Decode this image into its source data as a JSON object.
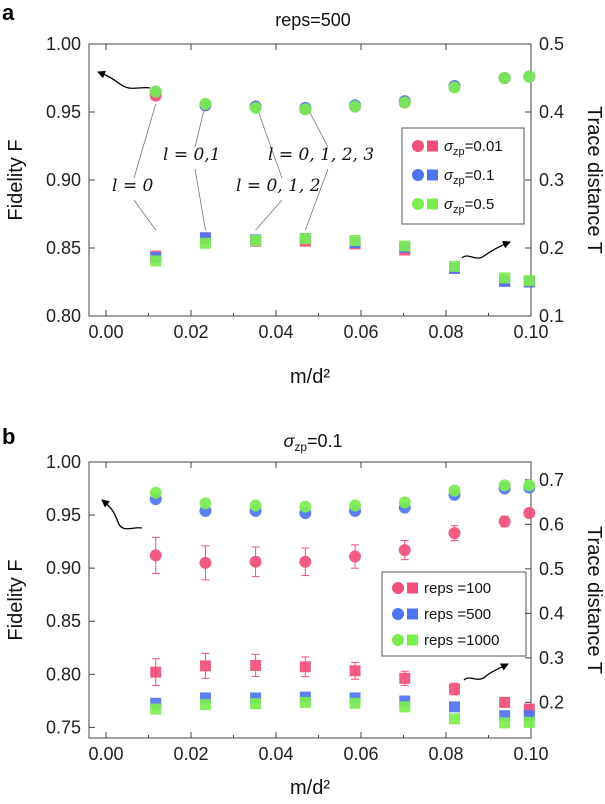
{
  "chart_data": [
    {
      "panel": "a",
      "type": "scatter",
      "title": "reps=500",
      "xlabel": "m/d²",
      "ylabel_left": "Fidelity F",
      "ylabel_right": "Trace distance T",
      "xlim": [
        -0.004,
        0.1
      ],
      "ylim_left": [
        0.8,
        1.0
      ],
      "ylim_right": [
        0.1,
        0.5
      ],
      "x_ticks": [
        "0.00",
        "0.02",
        "0.04",
        "0.06",
        "0.08",
        "0.10"
      ],
      "y_ticks_left": [
        "0.80",
        "0.85",
        "0.90",
        "0.95",
        "1.00"
      ],
      "y_ticks_right": [
        "0.1",
        "0.2",
        "0.3",
        "0.4",
        "0.5"
      ],
      "x": [
        0.0117,
        0.0234,
        0.0352,
        0.0469,
        0.0586,
        0.0703,
        0.082,
        0.0938,
        0.0996
      ],
      "legend": {
        "position": "right",
        "entries": [
          {
            "prefix": "σ",
            "sub": "zp",
            "suffix": "=0.01",
            "color": "#f0507a"
          },
          {
            "prefix": "σ",
            "sub": "zp",
            "suffix": "=0.1",
            "color": "#4f74f2"
          },
          {
            "prefix": "σ",
            "sub": "zp",
            "suffix": "=0.5",
            "color": "#7ced4f"
          }
        ]
      },
      "series": [
        {
          "name": "σzp=0.01 fidelity",
          "axis": "left",
          "marker": "circle",
          "color": "#f0507a",
          "values": [
            0.962,
            0.955,
            0.954,
            0.952,
            0.954,
            0.957,
            0.969,
            0.975,
            0.976
          ]
        },
        {
          "name": "σzp=0.1 fidelity",
          "axis": "left",
          "marker": "circle",
          "color": "#4f74f2",
          "values": [
            0.965,
            0.955,
            0.954,
            0.953,
            0.955,
            0.958,
            0.969,
            0.975,
            0.976
          ]
        },
        {
          "name": "σzp=0.5 fidelity",
          "axis": "left",
          "marker": "circle",
          "color": "#7ced4f",
          "values": [
            0.965,
            0.956,
            0.953,
            0.952,
            0.954,
            0.957,
            0.968,
            0.975,
            0.976
          ]
        },
        {
          "name": "σzp=0.01 trace distance",
          "axis": "right",
          "marker": "square",
          "color": "#f0507a",
          "values": [
            0.188,
            0.215,
            0.21,
            0.21,
            0.206,
            0.197,
            0.17,
            0.152,
            0.15
          ]
        },
        {
          "name": "σzp=0.1 trace distance",
          "axis": "right",
          "marker": "square",
          "color": "#4f74f2",
          "values": [
            0.186,
            0.215,
            0.212,
            0.214,
            0.208,
            0.201,
            0.17,
            0.151,
            0.15
          ]
        },
        {
          "name": "σzp=0.5 trace distance",
          "axis": "right",
          "marker": "square",
          "color": "#7ced4f",
          "values": [
            0.181,
            0.207,
            0.211,
            0.214,
            0.211,
            0.203,
            0.173,
            0.156,
            0.152
          ]
        }
      ],
      "annotations": [
        {
          "text": "l = 0",
          "x_data": 0.0117
        },
        {
          "text": "l = 0,1",
          "x_data": 0.0234
        },
        {
          "text": "l = 0, 1, 2",
          "x_data": 0.0352
        },
        {
          "text": "l = 0, 1, 2, 3",
          "x_data": 0.0469
        }
      ]
    },
    {
      "panel": "b",
      "type": "scatter",
      "title_prefix": "σ",
      "title_sub": "zp",
      "title_suffix": "=0.1",
      "xlabel": "m/d²",
      "ylabel_left": "Fidelity F",
      "ylabel_right": "Trace distance T",
      "xlim": [
        -0.004,
        0.1
      ],
      "ylim_left": [
        0.74,
        1.0
      ],
      "ylim_right": [
        0.12,
        0.74
      ],
      "x_ticks": [
        "0.00",
        "0.02",
        "0.04",
        "0.06",
        "0.08",
        "0.10"
      ],
      "y_ticks_left": [
        "0.75",
        "0.80",
        "0.85",
        "0.90",
        "0.95",
        "1.00"
      ],
      "y_ticks_right": [
        "0.2",
        "0.3",
        "0.4",
        "0.5",
        "0.6",
        "0.7"
      ],
      "x": [
        0.0117,
        0.0234,
        0.0352,
        0.0469,
        0.0586,
        0.0703,
        0.082,
        0.0938,
        0.0996
      ],
      "legend": {
        "position": "right",
        "entries": [
          {
            "text": "reps =100",
            "color": "#f0507a"
          },
          {
            "text": "reps =500",
            "color": "#4f74f2"
          },
          {
            "text": "reps =1000",
            "color": "#7ced4f"
          }
        ]
      },
      "series": [
        {
          "name": "reps=100 fidelity",
          "axis": "left",
          "marker": "circle",
          "color": "#f0507a",
          "values": [
            0.912,
            0.905,
            0.906,
            0.906,
            0.911,
            0.917,
            0.933,
            0.944,
            0.952
          ],
          "errors": [
            0.017,
            0.016,
            0.014,
            0.013,
            0.011,
            0.009,
            0.007,
            0.005,
            0.004
          ]
        },
        {
          "name": "reps=500 fidelity",
          "axis": "left",
          "marker": "circle",
          "color": "#4f74f2",
          "values": [
            0.965,
            0.954,
            0.954,
            0.952,
            0.954,
            0.957,
            0.969,
            0.975,
            0.976
          ]
        },
        {
          "name": "reps=1000 fidelity",
          "axis": "left",
          "marker": "circle",
          "color": "#7ced4f",
          "values": [
            0.971,
            0.961,
            0.959,
            0.958,
            0.959,
            0.962,
            0.973,
            0.978,
            0.978
          ]
        },
        {
          "name": "reps=100 trace distance",
          "axis": "right",
          "marker": "square",
          "color": "#f0507a",
          "values": [
            0.268,
            0.282,
            0.283,
            0.28,
            0.271,
            0.254,
            0.23,
            0.2,
            0.185
          ],
          "errors": [
            0.03,
            0.028,
            0.025,
            0.022,
            0.019,
            0.016,
            0.013,
            0.01,
            0.008
          ]
        },
        {
          "name": "reps=500 trace distance",
          "axis": "right",
          "marker": "square",
          "color": "#4f74f2",
          "values": [
            0.198,
            0.21,
            0.21,
            0.212,
            0.21,
            0.203,
            0.19,
            0.17,
            0.17
          ]
        },
        {
          "name": "reps=1000 trace distance",
          "axis": "right",
          "marker": "square",
          "color": "#7ced4f",
          "values": [
            0.185,
            0.195,
            0.197,
            0.2,
            0.198,
            0.19,
            0.163,
            0.154,
            0.155
          ]
        }
      ]
    }
  ],
  "panel_labels": {
    "a": "a",
    "b": "b"
  }
}
